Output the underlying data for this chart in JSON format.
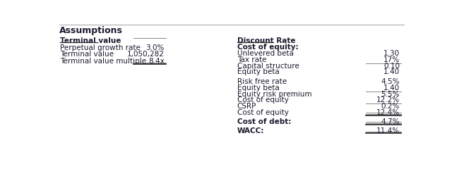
{
  "title": "Assumptions",
  "left_section_title": "Terminal value",
  "left_rows": [
    {
      "label": "Perpetual growth rate",
      "value": "3.0%"
    },
    {
      "label": "Terminal value",
      "value": "1,050,282"
    },
    {
      "label": "Terminal value multiple",
      "value": "8.4x"
    }
  ],
  "right_section_title": "Discount Rate",
  "right_subsection1": "Cost of equity:",
  "right_rows_group1": [
    {
      "label": "Unlevered beta",
      "value": "1.30",
      "line_above": false
    },
    {
      "label": "Tax rate",
      "value": "17%",
      "line_above": false
    },
    {
      "label": "Capital structure",
      "value": "0.10",
      "line_above": false
    },
    {
      "label": "Equity beta",
      "value": "1.40",
      "line_above": true
    }
  ],
  "right_rows_group2": [
    {
      "label": "Risk free rate",
      "value": "4.5%",
      "line_above": false
    },
    {
      "label": "Equity beta",
      "value": "1.40",
      "line_above": false
    },
    {
      "label": "Equity risk premium",
      "value": "5.5%",
      "line_above": false
    },
    {
      "label": "Cost of equity",
      "value": "12.2%",
      "line_above": true
    },
    {
      "label": "CSRP",
      "value": "0.2%",
      "line_above": false
    },
    {
      "label": "Cost of equity",
      "value": "12.4%",
      "line_above": true,
      "double_line": true
    }
  ],
  "right_rows_group3": [
    {
      "label": "Cost of debt:",
      "value": "4.7%",
      "bold": true,
      "line_above": true,
      "double_line": true
    }
  ],
  "right_rows_group4": [
    {
      "label": "WACC:",
      "value": "11.4%",
      "bold": true,
      "line_above": true,
      "double_line": true
    }
  ],
  "bg_color": "#ffffff",
  "text_color": "#1a1a2e",
  "header_color": "#1a1a2e",
  "title_fontsize": 9,
  "label_fontsize": 7.5,
  "value_fontsize": 7.5
}
